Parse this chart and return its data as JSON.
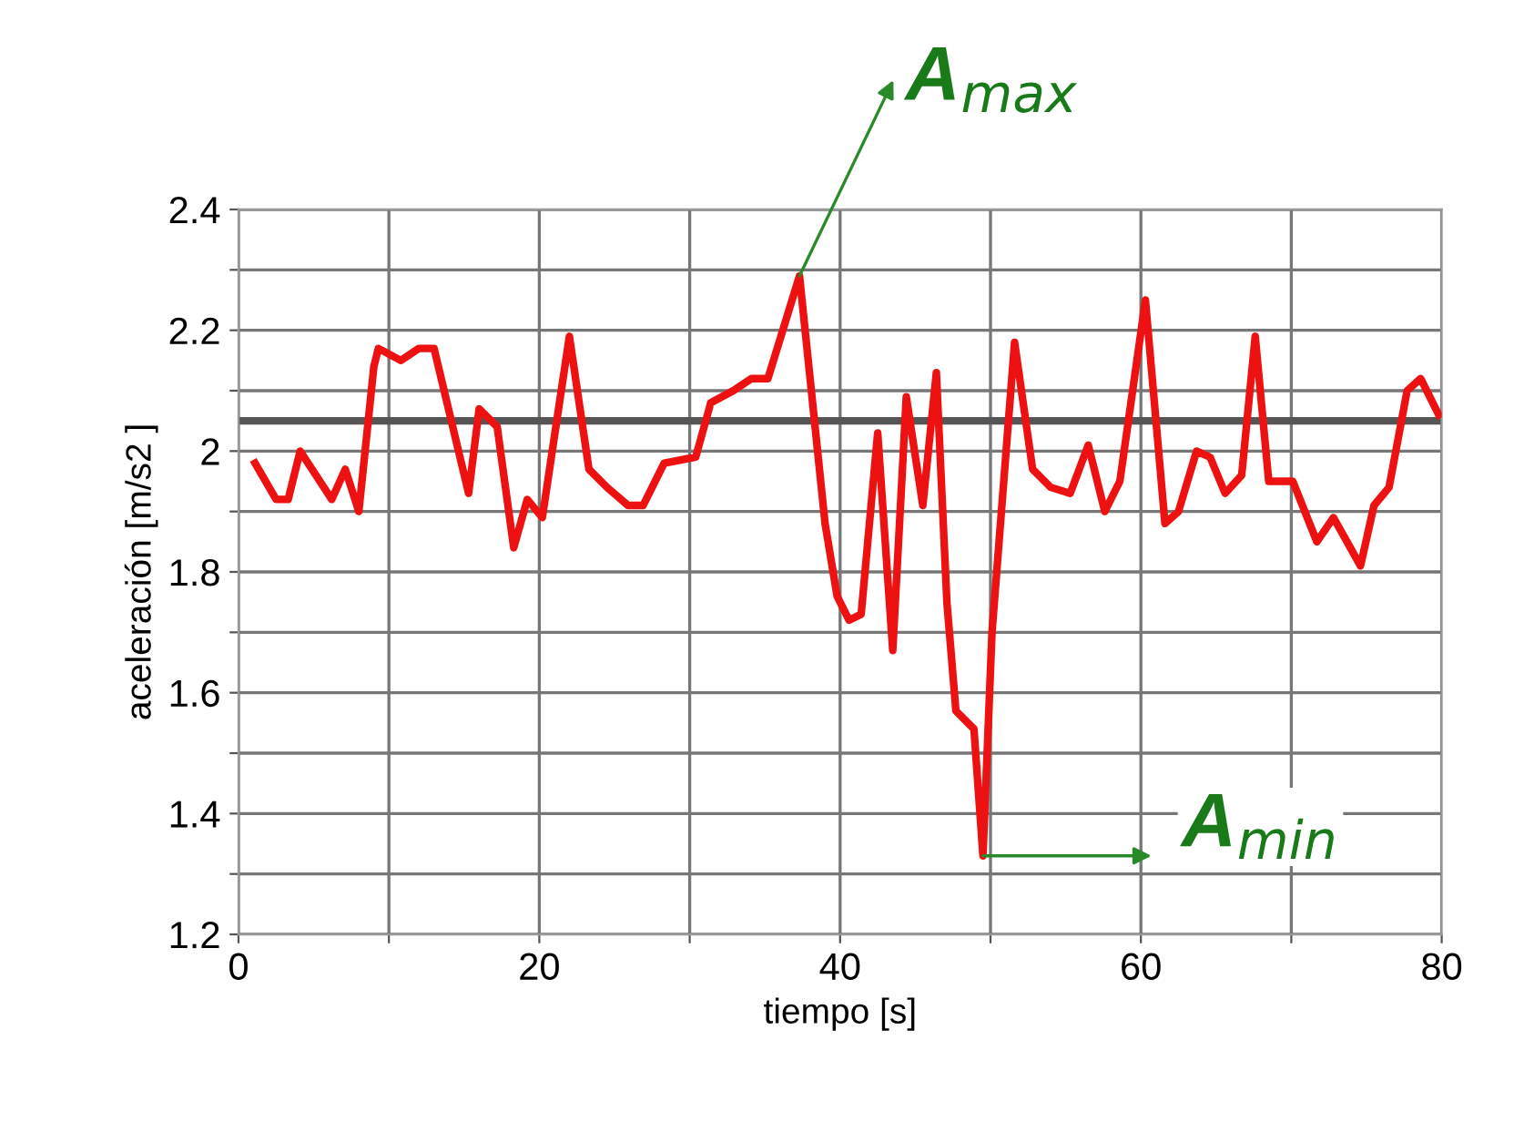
{
  "chart_data": {
    "type": "line",
    "xlabel": "tiempo [s]",
    "ylabel": "aceleración [m/s2 ]",
    "x": [
      1.1,
      2.5,
      3.3,
      4.1,
      6.2,
      7.1,
      8.0,
      9.0,
      9.3,
      10.8,
      12.0,
      13.0,
      15.3,
      16.0,
      17.2,
      18.3,
      19.2,
      20.2,
      22.0,
      23.3,
      24.5,
      25.9,
      26.9,
      28.3,
      30.4,
      31.4,
      32.9,
      34.1,
      35.2,
      37.3,
      39.0,
      39.8,
      40.6,
      41.4,
      42.5,
      43.5,
      44.4,
      45.5,
      46.4,
      47.1,
      47.7,
      48.9,
      49.5,
      50.1,
      51.6,
      52.8,
      54.0,
      55.3,
      56.5,
      57.6,
      58.6,
      60.3,
      61.6,
      62.5,
      63.7,
      64.6,
      65.6,
      66.7,
      67.6,
      68.5,
      70.1,
      71.7,
      72.8,
      74.6,
      75.5,
      76.5,
      77.7,
      78.6,
      79.8
    ],
    "series": [
      {
        "color": "#ee1111",
        "values": [
          1.98,
          1.92,
          1.92,
          2.0,
          1.92,
          1.97,
          1.9,
          2.14,
          2.17,
          2.15,
          2.17,
          2.17,
          1.93,
          2.07,
          2.04,
          1.84,
          1.92,
          1.89,
          2.19,
          1.97,
          1.94,
          1.91,
          1.91,
          1.98,
          1.99,
          2.08,
          2.1,
          2.12,
          2.12,
          2.29,
          1.88,
          1.76,
          1.72,
          1.73,
          2.03,
          1.67,
          2.09,
          1.91,
          2.13,
          1.75,
          1.57,
          1.54,
          1.33,
          1.7,
          2.18,
          1.97,
          1.94,
          1.93,
          2.01,
          1.9,
          1.95,
          2.25,
          1.88,
          1.9,
          2.0,
          1.99,
          1.93,
          1.96,
          2.19,
          1.95,
          1.95,
          1.85,
          1.89,
          1.81,
          1.91,
          1.94,
          2.1,
          2.12,
          2.06
        ]
      }
    ],
    "xlim": [
      0,
      80
    ],
    "ylim": [
      1.2,
      2.4
    ],
    "xticks": [
      0,
      {
        "value": 10,
        "label": null
      },
      20,
      {
        "value": 30,
        "label": null
      },
      40,
      {
        "value": 50,
        "label": null
      },
      60,
      {
        "value": 70,
        "label": null
      },
      80
    ],
    "yticks": [
      1.2,
      {
        "value": 1.3,
        "label": null
      },
      1.4,
      {
        "value": 1.5,
        "label": null
      },
      1.6,
      {
        "value": 1.7,
        "label": null
      },
      1.8,
      {
        "value": 1.9,
        "label": null
      },
      2,
      {
        "value": 2.1,
        "label": null
      },
      2.2,
      {
        "value": 2.3,
        "label": null
      },
      2.4
    ],
    "ref_lines": [
      {
        "axis": "y",
        "value": 2.05,
        "color": "#555555"
      }
    ],
    "annotations": [
      {
        "text": "A$_{max}$",
        "x": 37.3,
        "y": 2.29
      },
      {
        "text": "A$_{min}$",
        "x": 49.5,
        "y": 1.33
      }
    ],
    "grid": true,
    "marker": "none",
    "line_style": "solid"
  }
}
